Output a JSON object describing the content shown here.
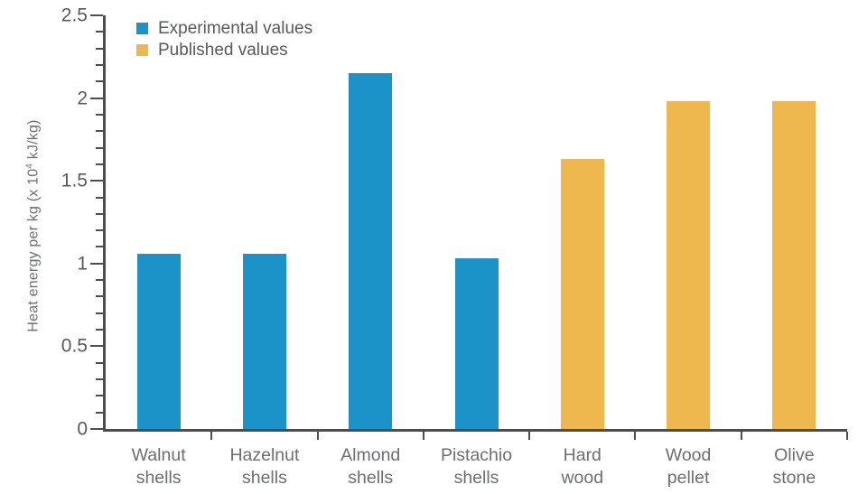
{
  "chart_data": {
    "type": "bar",
    "title": "",
    "ylabel": "Heat energy per kg (x 10^4 kJ/kg)",
    "ylabel_parts": {
      "prefix": "Heat energy per kg (x 10",
      "sup": "4",
      "suffix": " kJ/kg)"
    },
    "ylim": [
      0,
      2.5
    ],
    "y_major_step": 0.5,
    "y_minor_step": 0.1,
    "y_ticks": [
      {
        "value": 0,
        "label": "0"
      },
      {
        "value": 0.5,
        "label": "0.5"
      },
      {
        "value": 1,
        "label": "1"
      },
      {
        "value": 1.5,
        "label": "1.5"
      },
      {
        "value": 2,
        "label": "2"
      },
      {
        "value": 2.5,
        "label": "2.5"
      }
    ],
    "grid": false,
    "legend_position": "top-left",
    "categories": [
      "Walnut shells",
      "Hazelnut shells",
      "Almond shells",
      "Pistachio shells",
      "Hard wood",
      "Wood pellet",
      "Olive stone"
    ],
    "category_lines": [
      [
        "Walnut",
        "shells"
      ],
      [
        "Hazelnut",
        "shells"
      ],
      [
        "Almond",
        "shells"
      ],
      [
        "Pistachio",
        "shells"
      ],
      [
        "Hard",
        "wood"
      ],
      [
        "Wood",
        "pellet"
      ],
      [
        "Olive",
        "stone"
      ]
    ],
    "series": [
      {
        "name": "Experimental values",
        "color": "#1b93c9"
      },
      {
        "name": "Published values",
        "color": "#eeb84e"
      }
    ],
    "bars": [
      {
        "category": "Walnut shells",
        "value": 1.06,
        "series": 0
      },
      {
        "category": "Hazelnut shells",
        "value": 1.06,
        "series": 0
      },
      {
        "category": "Almond shells",
        "value": 2.15,
        "series": 0
      },
      {
        "category": "Pistachio shells",
        "value": 1.03,
        "series": 0
      },
      {
        "category": "Hard wood",
        "value": 1.63,
        "series": 1
      },
      {
        "category": "Wood pellet",
        "value": 1.98,
        "series": 1
      },
      {
        "category": "Olive stone",
        "value": 1.98,
        "series": 1
      }
    ],
    "colors": {
      "axis": "#4d4d4f",
      "tick_text": "#58595b",
      "label_text": "#6d6e71"
    }
  }
}
